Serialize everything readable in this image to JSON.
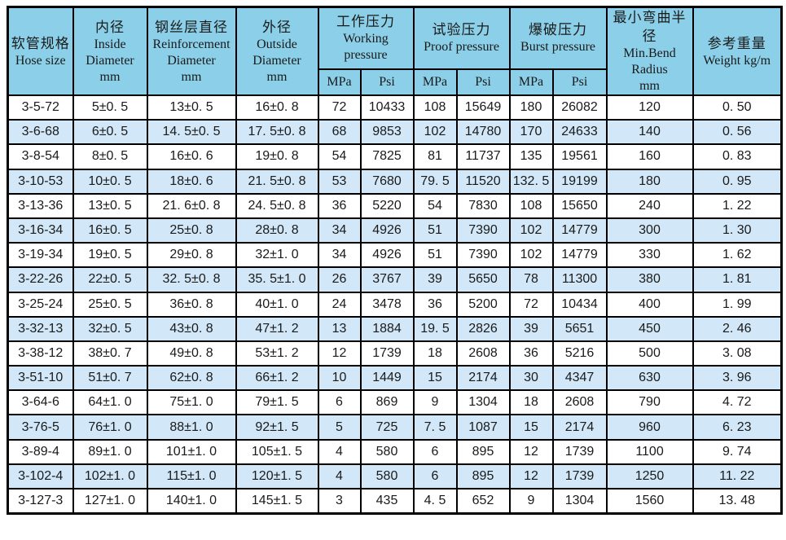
{
  "colors": {
    "header_bg": "#8BD0E8",
    "row_alt_bg": "#D2E8F8",
    "row_bg": "#FFFFFF",
    "border": "#000000",
    "text": "#1A1A1A"
  },
  "table": {
    "header": {
      "hose_size": {
        "zh": "软管规格",
        "en": "Hose size"
      },
      "inside_diameter": {
        "zh": "内径",
        "en_lines": [
          "Inside",
          "Diameter"
        ],
        "unit": "mm"
      },
      "reinforcement_diameter": {
        "zh": "钢丝层直径",
        "en_lines": [
          "Reinforcement",
          "Diameter"
        ],
        "unit": "mm"
      },
      "outside_diameter": {
        "zh": "外径",
        "en_lines": [
          "Outside",
          "Diameter"
        ],
        "unit": "mm"
      },
      "working_pressure": {
        "zh": "工作压力",
        "en_lines": [
          "Working",
          "pressure"
        ]
      },
      "proof_pressure": {
        "zh": "试验压力",
        "en": "Proof pressure"
      },
      "burst_pressure": {
        "zh": "爆破压力",
        "en": "Burst pressure"
      },
      "min_bend_radius": {
        "zh": "最小弯曲半径",
        "en_lines": [
          "Min.Bend",
          "Radius"
        ],
        "unit": "mm"
      },
      "weight": {
        "zh": "参考重量",
        "en": "Weight kg/m"
      },
      "sub_units": {
        "mpa": "MPa",
        "psi": "Psi"
      }
    }
  },
  "chart_data": {
    "type": "table",
    "columns": [
      "软管规格 Hose size",
      "内径 Inside Diameter mm",
      "钢丝层直径 Reinforcement Diameter mm",
      "外径 Outside Diameter mm",
      "工作压力 Working pressure MPa",
      "工作压力 Working pressure Psi",
      "试验压力 Proof pressure MPa",
      "试验压力 Proof pressure Psi",
      "爆破压力 Burst pressure MPa",
      "爆破压力 Burst pressure Psi",
      "最小弯曲半径 Min.Bend Radius mm",
      "参考重量 Weight kg/m"
    ],
    "rows": [
      [
        "3-5-72",
        "5±0. 5",
        "13±0. 5",
        "16±0. 8",
        "72",
        "10433",
        "108",
        "15649",
        "180",
        "26082",
        "120",
        "0. 50"
      ],
      [
        "3-6-68",
        "6±0. 5",
        "14. 5±0. 5",
        "17. 5±0. 8",
        "68",
        "9853",
        "102",
        "14780",
        "170",
        "24633",
        "140",
        "0. 56"
      ],
      [
        "3-8-54",
        "8±0. 5",
        "16±0. 6",
        "19±0. 8",
        "54",
        "7825",
        "81",
        "11737",
        "135",
        "19561",
        "160",
        "0. 83"
      ],
      [
        "3-10-53",
        "10±0. 5",
        "18±0. 6",
        "21. 5±0. 8",
        "53",
        "7680",
        "79. 5",
        "11520",
        "132. 5",
        "19199",
        "180",
        "0. 95"
      ],
      [
        "3-13-36",
        "13±0. 5",
        "21. 6±0. 8",
        "24. 5±0. 8",
        "36",
        "5220",
        "54",
        "7830",
        "108",
        "15650",
        "240",
        "1. 22"
      ],
      [
        "3-16-34",
        "16±0. 5",
        "25±0. 8",
        "28±0. 8",
        "34",
        "4926",
        "51",
        "7390",
        "102",
        "14779",
        "300",
        "1. 30"
      ],
      [
        "3-19-34",
        "19±0. 5",
        "29±0. 8",
        "32±1. 0",
        "34",
        "4926",
        "51",
        "7390",
        "102",
        "14779",
        "330",
        "1. 62"
      ],
      [
        "3-22-26",
        "22±0. 5",
        "32. 5±0. 8",
        "35. 5±1. 0",
        "26",
        "3767",
        "39",
        "5650",
        "78",
        "11300",
        "380",
        "1. 81"
      ],
      [
        "3-25-24",
        "25±0. 5",
        "36±0. 8",
        "40±1. 0",
        "24",
        "3478",
        "36",
        "5200",
        "72",
        "10434",
        "400",
        "1. 99"
      ],
      [
        "3-32-13",
        "32±0. 5",
        "43±0. 8",
        "47±1. 2",
        "13",
        "1884",
        "19. 5",
        "2826",
        "39",
        "5651",
        "450",
        "2. 46"
      ],
      [
        "3-38-12",
        "38±0. 7",
        "49±0. 8",
        "53±1. 2",
        "12",
        "1739",
        "18",
        "2608",
        "36",
        "5216",
        "500",
        "3. 08"
      ],
      [
        "3-51-10",
        "51±0. 7",
        "62±0. 8",
        "66±1. 2",
        "10",
        "1449",
        "15",
        "2174",
        "30",
        "4347",
        "630",
        "3. 96"
      ],
      [
        "3-64-6",
        "64±1. 0",
        "75±1. 0",
        "79±1. 5",
        "6",
        "869",
        "9",
        "1304",
        "18",
        "2608",
        "790",
        "4. 72"
      ],
      [
        "3-76-5",
        "76±1. 0",
        "88±1. 0",
        "92±1. 5",
        "5",
        "725",
        "7. 5",
        "1087",
        "15",
        "2174",
        "960",
        "6. 23"
      ],
      [
        "3-89-4",
        "89±1. 0",
        "101±1. 0",
        "105±1. 5",
        "4",
        "580",
        "6",
        "895",
        "12",
        "1739",
        "1100",
        "9. 74"
      ],
      [
        "3-102-4",
        "102±1. 0",
        "115±1. 0",
        "120±1. 5",
        "4",
        "580",
        "6",
        "895",
        "12",
        "1739",
        "1250",
        "11. 22"
      ],
      [
        "3-127-3",
        "127±1. 0",
        "140±1. 0",
        "145±1. 5",
        "3",
        "435",
        "4. 5",
        "652",
        "9",
        "1304",
        "1560",
        "13. 48"
      ]
    ]
  }
}
